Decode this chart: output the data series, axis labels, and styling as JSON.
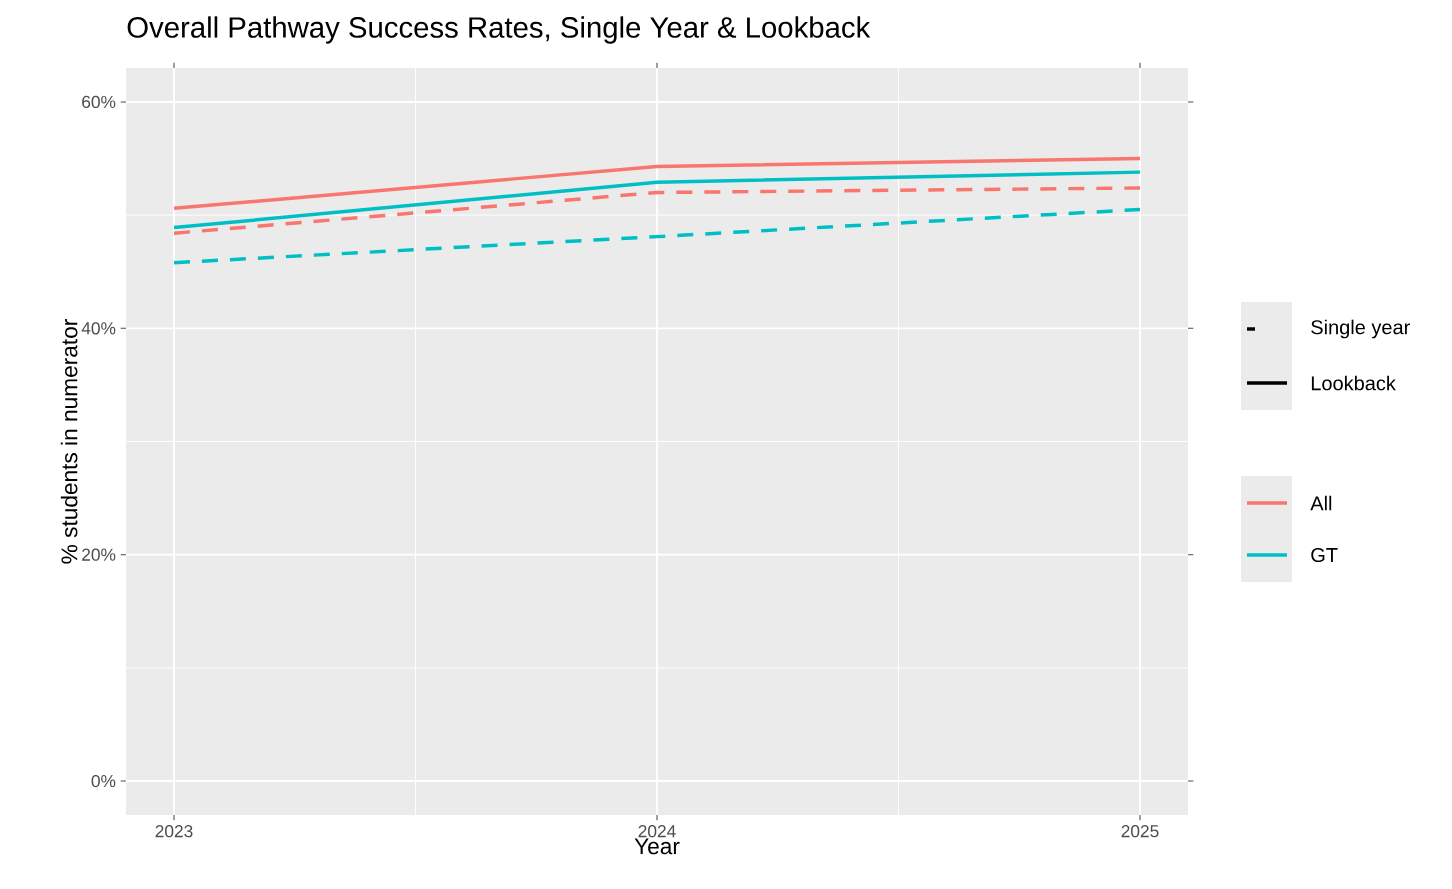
{
  "chart_data": {
    "type": "line",
    "title": "Overall Pathway Success Rates, Single Year & Lookback",
    "xlabel": "Year",
    "ylabel": "% students in numerator",
    "categories": [
      "2023",
      "2024",
      "2025"
    ],
    "series": [
      {
        "color": "#f8766d",
        "line_style": "dashed",
        "values": [
          48.4,
          52.0,
          52.4
        ]
      },
      {
        "color": "#00bfc4",
        "line_style": "dashed",
        "values": [
          45.8,
          48.1,
          50.5
        ]
      },
      {
        "name": "All",
        "color": "#f8766d",
        "line_style": "solid",
        "values": [
          50.6,
          54.3,
          55.0
        ]
      },
      {
        "name": "GT",
        "color": "#00bfc4",
        "line_style": "solid",
        "values": [
          48.9,
          52.9,
          53.8
        ]
      }
    ],
    "annotations": [
      "Single year",
      "Lookback"
    ],
    "ylim": [
      -3,
      63
    ],
    "yticks": [
      {
        "value": 0,
        "label": "0%"
      },
      {
        "value": 20,
        "label": "20%"
      },
      {
        "value": 40,
        "label": "40%"
      },
      {
        "value": 60,
        "label": "60%"
      }
    ],
    "grid": true,
    "legend": "right",
    "marker": "none"
  }
}
